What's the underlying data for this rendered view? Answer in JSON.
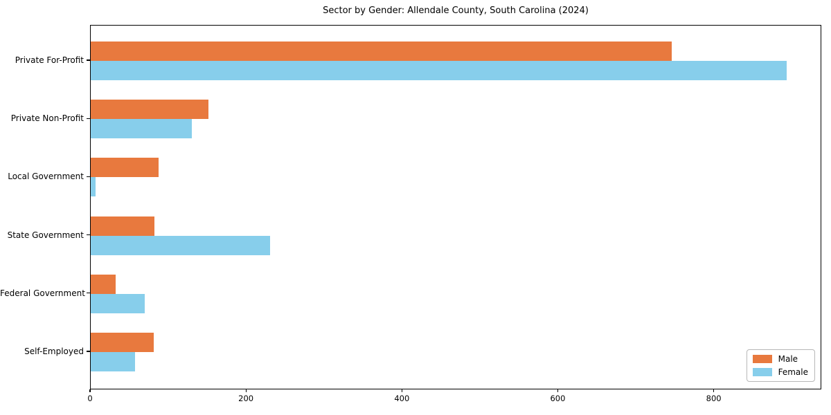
{
  "chart_data": {
    "type": "bar",
    "orientation": "horizontal",
    "title": "Sector by Gender: Allendale County, South Carolina (2024)",
    "categories": [
      "Private For-Profit",
      "Private Non-Profit",
      "Local Government",
      "State Government",
      "Federal Government",
      "Self-Employed"
    ],
    "series": [
      {
        "name": "Male",
        "color": "#E8793E",
        "values": [
          745,
          151,
          87,
          82,
          32,
          81
        ]
      },
      {
        "name": "Female",
        "color": "#87CEEB",
        "values": [
          893,
          130,
          6,
          230,
          69,
          57
        ]
      }
    ],
    "xlabel": "",
    "ylabel": "",
    "xlim": [
      0,
      938
    ],
    "xticks": [
      0,
      200,
      400,
      600,
      800
    ],
    "grid": false,
    "legend_position": "lower right",
    "axis_color": "#000000",
    "background_color": "#ffffff"
  }
}
